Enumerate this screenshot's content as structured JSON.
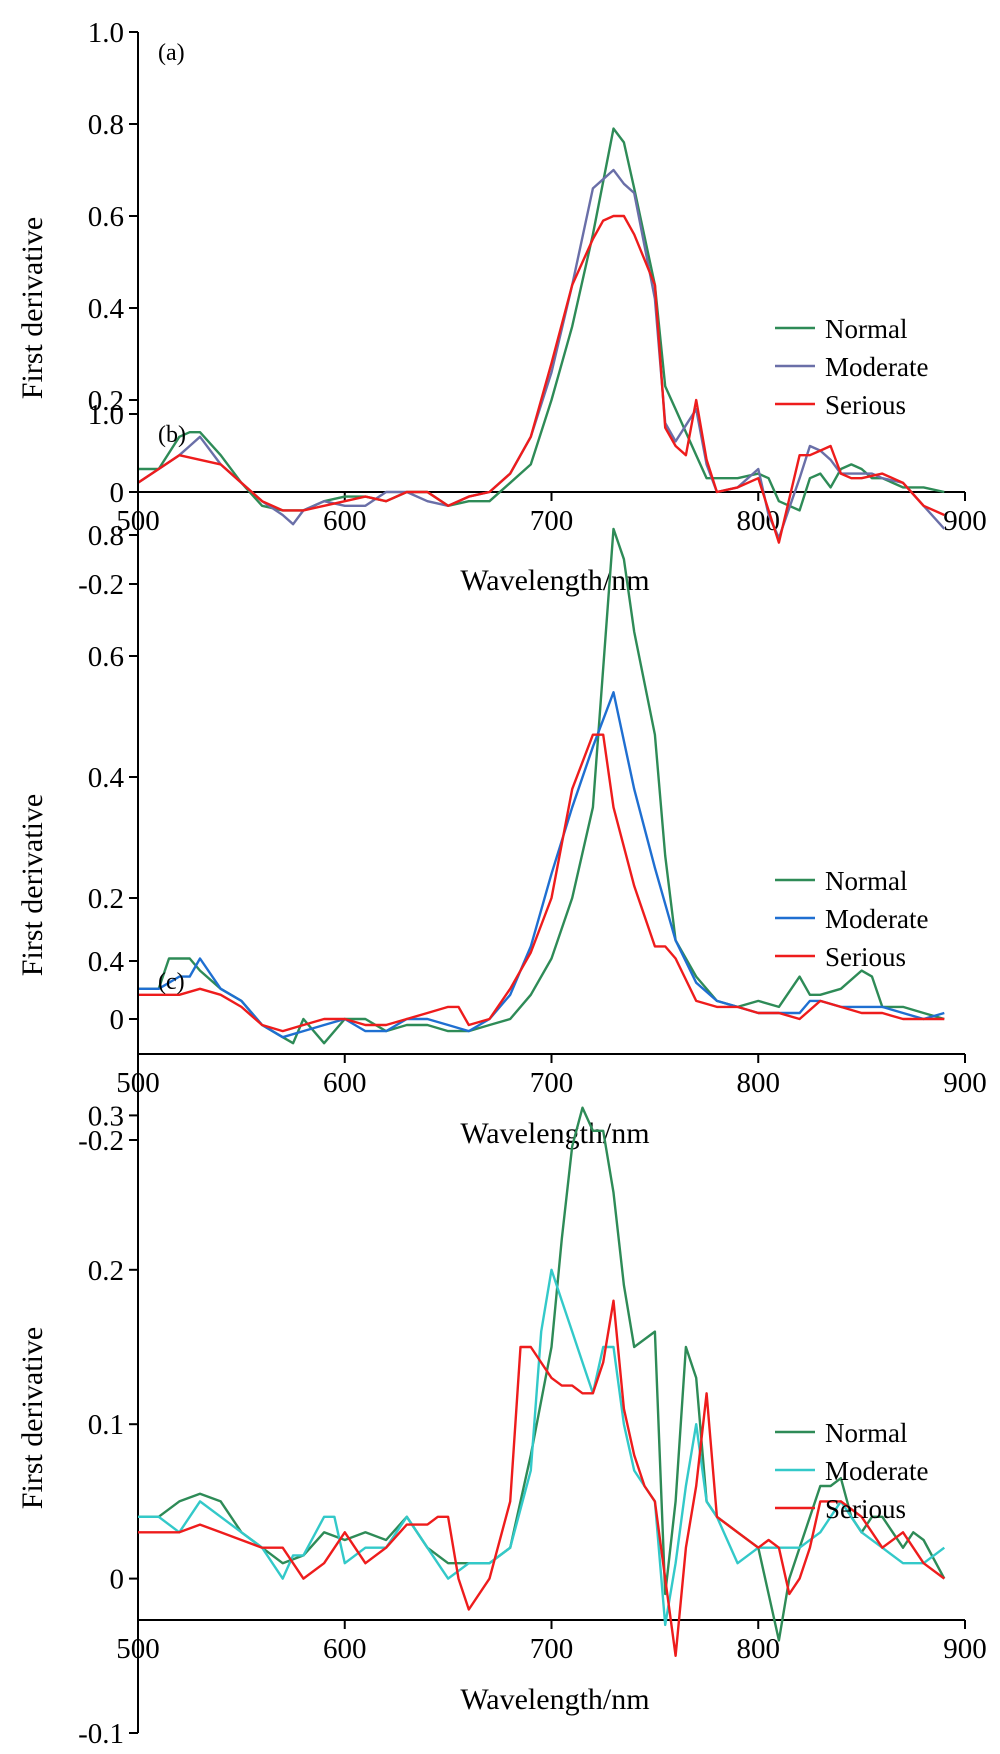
{
  "chart_data": [
    {
      "type": "line",
      "panel_label": "(a)",
      "xlabel": "Wavelength/nm",
      "ylabel": "First derivative",
      "xlim": [
        500,
        900
      ],
      "ylim": [
        -0.2,
        1.0
      ],
      "xticks": [
        "500",
        "600",
        "700",
        "800",
        "900"
      ],
      "yticks": [
        "1.0",
        "0.8",
        "0.6",
        "0.4",
        "0.2",
        "0",
        "-0.2"
      ],
      "legend_position": "right",
      "legend": [
        "Normal",
        "Moderate",
        "Serious"
      ],
      "series": [
        {
          "name": "Normal",
          "color": "#2e8b57",
          "x": [
            500,
            510,
            520,
            525,
            530,
            540,
            550,
            560,
            570,
            580,
            590,
            600,
            610,
            620,
            630,
            640,
            650,
            660,
            670,
            680,
            690,
            700,
            710,
            720,
            730,
            735,
            740,
            750,
            755,
            760,
            770,
            775,
            780,
            790,
            800,
            805,
            810,
            820,
            825,
            830,
            835,
            840,
            845,
            850,
            855,
            860,
            870,
            880,
            890
          ],
          "y": [
            0.05,
            0.05,
            0.12,
            0.13,
            0.13,
            0.08,
            0.02,
            -0.03,
            -0.04,
            -0.04,
            -0.02,
            -0.01,
            -0.01,
            -0.02,
            0,
            0,
            -0.03,
            -0.02,
            -0.02,
            0.02,
            0.06,
            0.2,
            0.36,
            0.56,
            0.79,
            0.76,
            0.66,
            0.45,
            0.23,
            0.18,
            0.08,
            0.03,
            0.03,
            0.03,
            0.04,
            0.03,
            -0.02,
            -0.04,
            0.03,
            0.04,
            0.01,
            0.05,
            0.06,
            0.05,
            0.03,
            0.03,
            0.01,
            0.01,
            0
          ]
        },
        {
          "name": "Moderate",
          "color": "#6a6fa8",
          "x": [
            500,
            510,
            520,
            525,
            530,
            540,
            550,
            560,
            570,
            575,
            580,
            590,
            600,
            610,
            620,
            630,
            640,
            650,
            660,
            670,
            680,
            690,
            700,
            710,
            720,
            725,
            730,
            735,
            740,
            750,
            755,
            760,
            770,
            775,
            780,
            790,
            800,
            805,
            810,
            820,
            825,
            830,
            835,
            840,
            845,
            850,
            855,
            860,
            870,
            880,
            890
          ],
          "y": [
            0.02,
            0.05,
            0.08,
            0.1,
            0.12,
            0.06,
            0.02,
            -0.02,
            -0.05,
            -0.07,
            -0.04,
            -0.02,
            -0.03,
            -0.03,
            0,
            0,
            -0.02,
            -0.03,
            -0.01,
            0,
            0.04,
            0.12,
            0.26,
            0.45,
            0.66,
            0.68,
            0.7,
            0.67,
            0.65,
            0.42,
            0.15,
            0.11,
            0.18,
            0.06,
            0,
            0.01,
            0.05,
            -0.05,
            -0.1,
            0.03,
            0.1,
            0.09,
            0.07,
            0.04,
            0.04,
            0.04,
            0.04,
            0.03,
            0.02,
            -0.03,
            -0.08
          ]
        },
        {
          "name": "Serious",
          "color": "#ee1c1c",
          "x": [
            500,
            510,
            520,
            530,
            540,
            550,
            560,
            570,
            580,
            590,
            600,
            610,
            620,
            630,
            640,
            650,
            660,
            670,
            680,
            690,
            700,
            710,
            720,
            725,
            730,
            735,
            740,
            750,
            755,
            760,
            765,
            770,
            775,
            780,
            790,
            800,
            805,
            810,
            820,
            825,
            830,
            835,
            840,
            845,
            850,
            860,
            870,
            880,
            890
          ],
          "y": [
            0.02,
            0.05,
            0.08,
            0.07,
            0.06,
            0.02,
            -0.02,
            -0.04,
            -0.04,
            -0.03,
            -0.02,
            -0.01,
            -0.02,
            0,
            0,
            -0.03,
            -0.01,
            0,
            0.04,
            0.12,
            0.28,
            0.45,
            0.55,
            0.59,
            0.6,
            0.6,
            0.56,
            0.45,
            0.14,
            0.1,
            0.08,
            0.2,
            0.07,
            0,
            0.01,
            0.03,
            -0.04,
            -0.11,
            0.08,
            0.08,
            0.09,
            0.1,
            0.04,
            0.03,
            0.03,
            0.04,
            0.02,
            -0.03,
            -0.05
          ]
        }
      ]
    },
    {
      "type": "line",
      "panel_label": "(b)",
      "xlabel": "Wavelength/nm",
      "ylabel": "First derivative",
      "xlim": [
        500,
        900
      ],
      "ylim": [
        -0.2,
        1.0
      ],
      "xticks": [
        "500",
        "600",
        "700",
        "800",
        "900"
      ],
      "yticks": [
        "1.0",
        "0.8",
        "0.6",
        "0.4",
        "0.2",
        "0",
        "-0.2"
      ],
      "legend_position": "right",
      "legend": [
        "Normal",
        "Moderate",
        "Serious"
      ],
      "series": [
        {
          "name": "Normal",
          "color": "#2e8b57",
          "x": [
            500,
            510,
            515,
            520,
            525,
            530,
            540,
            550,
            560,
            570,
            575,
            580,
            590,
            600,
            610,
            620,
            630,
            640,
            650,
            660,
            670,
            680,
            690,
            700,
            710,
            720,
            730,
            735,
            740,
            750,
            755,
            760,
            770,
            780,
            790,
            800,
            810,
            820,
            825,
            830,
            840,
            850,
            855,
            860,
            870,
            880,
            890
          ],
          "y": [
            0.05,
            0.05,
            0.1,
            0.1,
            0.1,
            0.08,
            0.05,
            0.03,
            -0.01,
            -0.03,
            -0.04,
            0,
            -0.04,
            0,
            0,
            -0.02,
            -0.01,
            -0.01,
            -0.02,
            -0.02,
            -0.01,
            0,
            0.04,
            0.1,
            0.2,
            0.35,
            0.81,
            0.76,
            0.64,
            0.47,
            0.27,
            0.13,
            0.07,
            0.03,
            0.02,
            0.03,
            0.02,
            0.07,
            0.04,
            0.04,
            0.05,
            0.08,
            0.07,
            0.02,
            0.02,
            0.01,
            0
          ]
        },
        {
          "name": "Moderate",
          "color": "#1f6fd1",
          "x": [
            500,
            510,
            520,
            525,
            530,
            540,
            550,
            560,
            570,
            580,
            590,
            600,
            610,
            620,
            630,
            640,
            650,
            660,
            670,
            680,
            690,
            700,
            710,
            720,
            730,
            740,
            750,
            760,
            770,
            780,
            790,
            800,
            810,
            820,
            825,
            830,
            840,
            850,
            860,
            870,
            880,
            890
          ],
          "y": [
            0.05,
            0.05,
            0.07,
            0.07,
            0.1,
            0.05,
            0.03,
            -0.01,
            -0.03,
            -0.02,
            -0.01,
            0,
            -0.02,
            -0.02,
            0,
            0,
            -0.01,
            -0.02,
            0,
            0.04,
            0.12,
            0.24,
            0.35,
            0.45,
            0.54,
            0.38,
            0.25,
            0.13,
            0.06,
            0.03,
            0.02,
            0.01,
            0.01,
            0.01,
            0.03,
            0.03,
            0.02,
            0.02,
            0.02,
            0.01,
            0,
            0.01
          ]
        },
        {
          "name": "Serious",
          "color": "#ee1c1c",
          "x": [
            500,
            510,
            520,
            530,
            540,
            550,
            560,
            570,
            580,
            590,
            600,
            610,
            620,
            630,
            640,
            650,
            655,
            660,
            670,
            680,
            690,
            700,
            710,
            720,
            725,
            730,
            740,
            750,
            755,
            760,
            770,
            780,
            790,
            800,
            810,
            820,
            830,
            840,
            850,
            860,
            870,
            880,
            890
          ],
          "y": [
            0.04,
            0.04,
            0.04,
            0.05,
            0.04,
            0.02,
            -0.01,
            -0.02,
            -0.01,
            0,
            0,
            -0.01,
            -0.01,
            0,
            0.01,
            0.02,
            0.02,
            -0.01,
            0,
            0.05,
            0.11,
            0.2,
            0.38,
            0.47,
            0.47,
            0.35,
            0.22,
            0.12,
            0.12,
            0.1,
            0.03,
            0.02,
            0.02,
            0.01,
            0.01,
            0,
            0.03,
            0.02,
            0.01,
            0.01,
            0,
            0,
            0
          ]
        }
      ]
    },
    {
      "type": "line",
      "panel_label": "(c)",
      "xlabel": "Wavelength/nm",
      "ylabel": "First derivative",
      "xlim": [
        500,
        900
      ],
      "ylim": [
        -0.1,
        0.4
      ],
      "xticks": [
        "500",
        "600",
        "700",
        "800",
        "900"
      ],
      "yticks": [
        "0.4",
        "0.3",
        "0.2",
        "0.1",
        "0",
        "-0.1"
      ],
      "legend_position": "right",
      "legend": [
        "Normal",
        "Moderate",
        "Serious"
      ],
      "series": [
        {
          "name": "Normal",
          "color": "#2e8b57",
          "x": [
            500,
            510,
            520,
            530,
            540,
            550,
            560,
            570,
            580,
            590,
            600,
            610,
            620,
            630,
            640,
            650,
            660,
            670,
            680,
            690,
            700,
            705,
            710,
            715,
            720,
            725,
            730,
            735,
            740,
            750,
            755,
            760,
            765,
            770,
            775,
            780,
            790,
            800,
            805,
            810,
            815,
            820,
            830,
            835,
            840,
            845,
            850,
            855,
            860,
            870,
            875,
            880,
            890
          ],
          "y": [
            0.04,
            0.04,
            0.05,
            0.055,
            0.05,
            0.03,
            0.02,
            0.01,
            0.015,
            0.03,
            0.025,
            0.03,
            0.025,
            0.04,
            0.02,
            0.01,
            0.01,
            0.01,
            0.02,
            0.08,
            0.15,
            0.22,
            0.28,
            0.305,
            0.29,
            0.29,
            0.25,
            0.19,
            0.15,
            0.16,
            -0.01,
            0.05,
            0.15,
            0.13,
            0.05,
            0.04,
            0.03,
            0.02,
            -0.01,
            -0.04,
            0,
            0.02,
            0.06,
            0.06,
            0.065,
            0.04,
            0.03,
            0.04,
            0.04,
            0.02,
            0.03,
            0.025,
            0
          ]
        },
        {
          "name": "Moderate",
          "color": "#33c9c9",
          "x": [
            500,
            510,
            520,
            530,
            540,
            550,
            560,
            570,
            575,
            580,
            590,
            595,
            600,
            610,
            620,
            630,
            640,
            650,
            660,
            670,
            680,
            690,
            695,
            700,
            705,
            710,
            715,
            720,
            725,
            730,
            735,
            740,
            745,
            750,
            755,
            760,
            765,
            770,
            775,
            780,
            790,
            800,
            805,
            810,
            820,
            830,
            840,
            850,
            860,
            870,
            880,
            890
          ],
          "y": [
            0.04,
            0.04,
            0.03,
            0.05,
            0.04,
            0.03,
            0.02,
            0,
            0.015,
            0.015,
            0.04,
            0.04,
            0.01,
            0.02,
            0.02,
            0.04,
            0.02,
            0,
            0.01,
            0.01,
            0.02,
            0.07,
            0.16,
            0.2,
            0.18,
            0.16,
            0.14,
            0.12,
            0.15,
            0.15,
            0.1,
            0.07,
            0.06,
            0.05,
            -0.03,
            0.01,
            0.06,
            0.1,
            0.05,
            0.04,
            0.01,
            0.02,
            0.02,
            0.02,
            0.02,
            0.03,
            0.05,
            0.03,
            0.02,
            0.01,
            0.01,
            0.02
          ]
        },
        {
          "name": "Serious",
          "color": "#ee1c1c",
          "x": [
            500,
            510,
            520,
            530,
            540,
            550,
            560,
            570,
            580,
            590,
            600,
            610,
            620,
            630,
            640,
            645,
            650,
            655,
            660,
            670,
            680,
            685,
            690,
            700,
            705,
            710,
            715,
            720,
            725,
            730,
            735,
            740,
            745,
            750,
            755,
            760,
            765,
            770,
            775,
            780,
            790,
            800,
            805,
            810,
            815,
            820,
            825,
            830,
            835,
            840,
            845,
            850,
            860,
            870,
            880,
            890
          ],
          "y": [
            0.03,
            0.03,
            0.03,
            0.035,
            0.03,
            0.025,
            0.02,
            0.02,
            0,
            0.01,
            0.03,
            0.01,
            0.02,
            0.035,
            0.035,
            0.04,
            0.04,
            0,
            -0.02,
            0,
            0.05,
            0.15,
            0.15,
            0.13,
            0.125,
            0.125,
            0.12,
            0.12,
            0.14,
            0.18,
            0.11,
            0.08,
            0.06,
            0.05,
            0,
            -0.05,
            0.02,
            0.06,
            0.12,
            0.04,
            0.03,
            0.02,
            0.025,
            0.02,
            -0.01,
            0,
            0.02,
            0.05,
            0.05,
            0.05,
            0.045,
            0.04,
            0.02,
            0.03,
            0.01,
            0
          ]
        }
      ]
    }
  ]
}
